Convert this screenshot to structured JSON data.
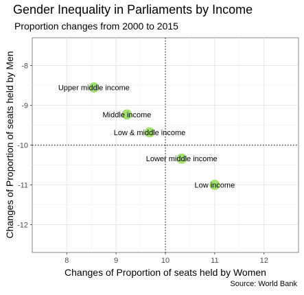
{
  "title": "Gender Inequality in Parliaments by Income",
  "subtitle": "Proportion changes from 2000 to 2015",
  "caption": "Source: World Bank",
  "chart_data": {
    "type": "scatter",
    "title": "Gender Inequality in Parliaments by Income",
    "subtitle": "Proportion changes from 2000 to 2015",
    "xlabel": "Changes of Proportion of seats held by Women",
    "ylabel": "Changes of Proportion of seats held by Men",
    "xlim": [
      7.3,
      12.7
    ],
    "ylim": [
      -12.7,
      -7.3
    ],
    "xticks": [
      8,
      9,
      10,
      11,
      12
    ],
    "yticks": [
      -8,
      -9,
      -10,
      -11,
      -12
    ],
    "grid": true,
    "reference_lines": {
      "x": 10,
      "y": -10
    },
    "point_color": "#a3e06f",
    "points": [
      {
        "label": "Upper middle income",
        "x": 8.55,
        "y": -8.55
      },
      {
        "label": "Middle income",
        "x": 9.22,
        "y": -9.23
      },
      {
        "label": "Low & middle income",
        "x": 9.68,
        "y": -9.68
      },
      {
        "label": "Lower middle income",
        "x": 10.33,
        "y": -10.34
      },
      {
        "label": "Low income",
        "x": 11.0,
        "y": -11.0
      }
    ]
  }
}
